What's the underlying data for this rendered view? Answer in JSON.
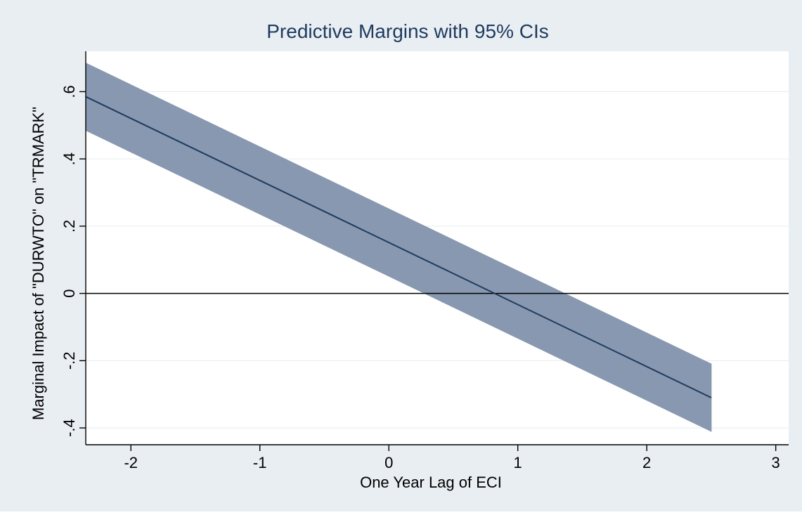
{
  "chart_data": {
    "type": "line",
    "title": "Predictive Margins with 95% CIs",
    "xlabel": "One Year Lag of ECI",
    "ylabel": "Marginal Impact of \"DURWTO\" on \"TRMARK\"",
    "xlim": [
      -2.35,
      3.1
    ],
    "ylim": [
      -0.45,
      0.72
    ],
    "x_ticks": [
      -2,
      -1,
      0,
      1,
      2,
      3
    ],
    "x_tick_labels": [
      "-2",
      "-1",
      "0",
      "1",
      "2",
      "3"
    ],
    "y_ticks": [
      -0.4,
      -0.2,
      0,
      0.2,
      0.4,
      0.6
    ],
    "y_tick_labels": [
      "-.4",
      "-.2",
      "0",
      ".2",
      ".4",
      ".6"
    ],
    "grid": true,
    "reference_line_y": 0,
    "series": [
      {
        "x": [
          -2.35,
          2.5
        ],
        "values": [
          0.585,
          -0.31
        ],
        "ci_lower": [
          0.485,
          -0.41
        ],
        "ci_upper": [
          0.685,
          -0.21
        ]
      }
    ],
    "colors": {
      "background": "#e9eef2",
      "plot_background": "#ffffff",
      "band": "#8798b0",
      "line": "#1e3a5f",
      "title": "#1e3a5f",
      "grid": "#e6ebef",
      "axis": "#000000"
    }
  }
}
